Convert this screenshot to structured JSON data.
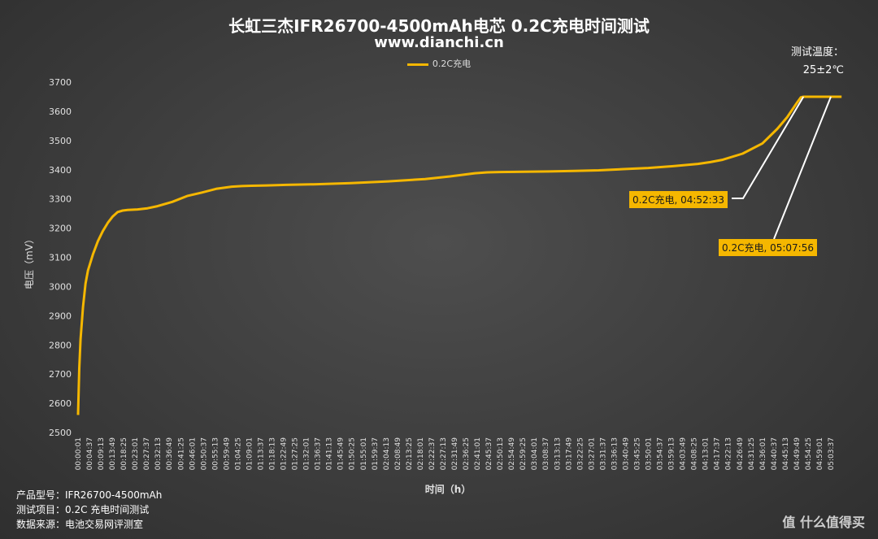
{
  "title": "长虹三杰IFR26700-4500mAh电芯 0.2C充电时间测试",
  "subtitle": "www.dianchi.cn",
  "temperature": {
    "label": "测试温度：",
    "value": "25±2℃"
  },
  "info": {
    "model_label": "产品型号：",
    "model_value": "IFR26700-4500mAh",
    "item_label": "测试项目：",
    "item_value": "0.2C 充电时间测试",
    "source_label": "数据来源：",
    "source_value": "电池交易网评测室"
  },
  "watermark": "值 什么值得买",
  "callouts": [
    {
      "text": "0.2C充电, 04:52:33"
    },
    {
      "text": "0.2C充电, 05:07:56"
    }
  ],
  "colors": {
    "series": "#f5b700",
    "callout_line": "#ffffff",
    "axis_text": "#e0e0e0"
  },
  "chart_data": {
    "type": "line",
    "title": "长虹三杰IFR26700-4500mAh电芯 0.2C充电时间测试",
    "xlabel": "时间（h）",
    "ylabel": "电压（mV）",
    "ylim": [
      2500,
      3700
    ],
    "yticks": [
      2500,
      2600,
      2700,
      2800,
      2900,
      3000,
      3100,
      3200,
      3300,
      3400,
      3500,
      3600,
      3700
    ],
    "legend": "top-center",
    "grid": false,
    "x_ticks": [
      "00:00:01",
      "00:04:37",
      "00:09:13",
      "00:13:49",
      "00:18:25",
      "00:23:01",
      "00:27:37",
      "00:32:13",
      "00:36:49",
      "00:41:25",
      "00:46:01",
      "00:50:37",
      "00:55:13",
      "00:59:49",
      "01:04:25",
      "01:09:01",
      "01:13:37",
      "01:18:13",
      "01:22:49",
      "01:27:25",
      "01:32:01",
      "01:36:37",
      "01:41:13",
      "01:45:49",
      "01:50:25",
      "01:55:01",
      "01:59:37",
      "02:04:13",
      "02:08:49",
      "02:13:25",
      "02:18:01",
      "02:22:37",
      "02:27:13",
      "02:31:49",
      "02:36:25",
      "02:41:01",
      "02:45:37",
      "02:50:13",
      "02:54:49",
      "02:59:25",
      "03:04:01",
      "03:08:37",
      "03:13:13",
      "03:17:49",
      "03:22:25",
      "03:27:01",
      "03:31:37",
      "03:36:13",
      "03:40:49",
      "03:45:25",
      "03:50:01",
      "03:54:37",
      "03:59:13",
      "04:03:49",
      "04:08:25",
      "04:13:01",
      "04:17:37",
      "04:22:13",
      "04:26:49",
      "04:31:25",
      "04:36:01",
      "04:40:37",
      "04:45:13",
      "04:49:49",
      "04:54:25",
      "04:59:01",
      "05:03:37"
    ],
    "series": [
      {
        "name": "0.2C充电",
        "x_minutes": [
          0,
          0.5,
          1,
          2,
          3,
          4,
          6,
          8,
          10,
          12,
          14,
          16,
          18,
          20,
          24,
          28,
          32,
          38,
          44,
          50,
          56,
          62,
          66,
          70,
          76,
          84,
          95,
          110,
          125,
          140,
          150,
          160,
          165,
          170,
          180,
          190,
          200,
          210,
          220,
          230,
          240,
          250,
          255,
          260,
          268,
          276,
          282,
          286,
          288,
          290,
          291.5,
          292.55,
          300,
          307.93
        ],
        "values": [
          2560,
          2720,
          2820,
          2930,
          3010,
          3055,
          3110,
          3155,
          3190,
          3218,
          3240,
          3255,
          3260,
          3262,
          3264,
          3268,
          3275,
          3290,
          3310,
          3322,
          3335,
          3342,
          3344,
          3345,
          3346,
          3348,
          3350,
          3354,
          3360,
          3368,
          3377,
          3388,
          3391,
          3392,
          3393,
          3394,
          3396,
          3398,
          3402,
          3406,
          3412,
          3420,
          3426,
          3434,
          3455,
          3490,
          3540,
          3580,
          3605,
          3630,
          3648,
          3650,
          3650,
          3650
        ]
      }
    ],
    "annotations": [
      {
        "text": "0.2C充电, 04:52:33",
        "x_minutes": 292.55,
        "y": 3650
      },
      {
        "text": "0.2C充电, 05:07:56",
        "x_minutes": 307.93,
        "y": 3650
      }
    ]
  }
}
